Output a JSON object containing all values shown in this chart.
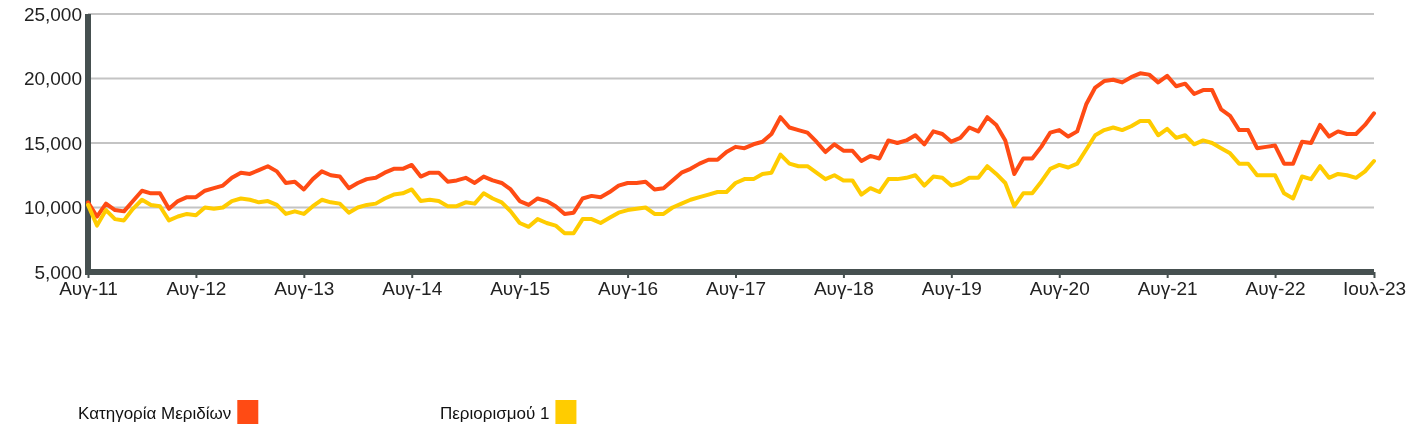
{
  "chart_data": {
    "type": "line",
    "categories": [
      "Αυγ-11",
      null,
      null,
      null,
      null,
      null,
      null,
      null,
      null,
      null,
      null,
      null,
      "Αυγ-12",
      null,
      null,
      null,
      null,
      null,
      null,
      null,
      null,
      null,
      null,
      null,
      "Αυγ-13",
      null,
      null,
      null,
      null,
      null,
      null,
      null,
      null,
      null,
      null,
      null,
      "Αυγ-14",
      null,
      null,
      null,
      null,
      null,
      null,
      null,
      null,
      null,
      null,
      null,
      "Αυγ-15",
      null,
      null,
      null,
      null,
      null,
      null,
      null,
      null,
      null,
      null,
      null,
      "Αυγ-16",
      null,
      null,
      null,
      null,
      null,
      null,
      null,
      null,
      null,
      null,
      null,
      "Αυγ-17",
      null,
      null,
      null,
      null,
      null,
      null,
      null,
      null,
      null,
      null,
      null,
      "Αυγ-18",
      null,
      null,
      null,
      null,
      null,
      null,
      null,
      null,
      null,
      null,
      null,
      "Αυγ-19",
      null,
      null,
      null,
      null,
      null,
      null,
      null,
      null,
      null,
      null,
      null,
      "Αυγ-20",
      null,
      null,
      null,
      null,
      null,
      null,
      null,
      null,
      null,
      null,
      null,
      "Αυγ-21",
      null,
      null,
      null,
      null,
      null,
      null,
      null,
      null,
      null,
      null,
      null,
      "Αυγ-22",
      null,
      null,
      null,
      null,
      null,
      null,
      null,
      null,
      null,
      null,
      "Ιουλ-23"
    ],
    "series": [
      {
        "name": "Κατηγορία Μεριδίων",
        "color": "#ff4b14",
        "values": [
          10400,
          9300,
          10300,
          9800,
          9700,
          10500,
          11300,
          11100,
          11100,
          9900,
          10500,
          10800,
          10800,
          11300,
          11500,
          11700,
          12300,
          12700,
          12600,
          12900,
          13200,
          12800,
          11900,
          12000,
          11400,
          12200,
          12800,
          12500,
          12400,
          11500,
          11900,
          12200,
          12300,
          12700,
          13000,
          13000,
          13300,
          12400,
          12700,
          12700,
          12000,
          12100,
          12300,
          11900,
          12400,
          12100,
          11900,
          11400,
          10500,
          10200,
          10700,
          10500,
          10100,
          9500,
          9600,
          10700,
          10900,
          10800,
          11200,
          11700,
          11900,
          11900,
          12000,
          11400,
          11500,
          12100,
          12700,
          13000,
          13400,
          13700,
          13700,
          14300,
          14700,
          14600,
          14900,
          15100,
          15700,
          17000,
          16200,
          16000,
          15800,
          15100,
          14300,
          14900,
          14400,
          14400,
          13600,
          14000,
          13800,
          15200,
          15000,
          15200,
          15600,
          14900,
          15900,
          15700,
          15100,
          15400,
          16200,
          15900,
          17000,
          16400,
          15200,
          12600,
          13800,
          13800,
          14700,
          15800,
          16000,
          15500,
          15900,
          18000,
          19300,
          19800,
          19900,
          19700,
          20100,
          20400,
          20300,
          19700,
          20200,
          19400,
          19600,
          18800,
          19100,
          19100,
          17600,
          17100,
          16000,
          16000,
          14600,
          14700,
          14800,
          13400,
          13400,
          15100,
          15000,
          16400,
          15500,
          15900,
          15700,
          15700,
          16400,
          17300
        ]
      },
      {
        "name": "Περιορισμού 1",
        "color": "#ffcc00",
        "values": [
          10200,
          8600,
          9800,
          9100,
          9000,
          9900,
          10600,
          10200,
          10100,
          9000,
          9300,
          9500,
          9400,
          10000,
          9900,
          10000,
          10500,
          10700,
          10600,
          10400,
          10500,
          10200,
          9500,
          9700,
          9500,
          10100,
          10600,
          10400,
          10300,
          9600,
          10000,
          10200,
          10300,
          10700,
          11000,
          11100,
          11400,
          10500,
          10600,
          10500,
          10100,
          10100,
          10400,
          10300,
          11100,
          10700,
          10400,
          9700,
          8800,
          8500,
          9100,
          8800,
          8600,
          8000,
          8000,
          9100,
          9100,
          8800,
          9200,
          9600,
          9800,
          9900,
          10000,
          9500,
          9500,
          10000,
          10300,
          10600,
          10800,
          11000,
          11200,
          11200,
          11900,
          12200,
          12200,
          12600,
          12700,
          14100,
          13400,
          13200,
          13200,
          12700,
          12200,
          12500,
          12100,
          12100,
          11000,
          11500,
          11200,
          12200,
          12200,
          12300,
          12500,
          11700,
          12400,
          12300,
          11700,
          11900,
          12300,
          12300,
          13200,
          12600,
          11900,
          10100,
          11100,
          11100,
          12000,
          13000,
          13300,
          13100,
          13400,
          14500,
          15600,
          16000,
          16200,
          16000,
          16300,
          16700,
          16700,
          15600,
          16100,
          15400,
          15600,
          14900,
          15200,
          15000,
          14600,
          14200,
          13400,
          13400,
          12500,
          12500,
          12500,
          11100,
          10700,
          12400,
          12200,
          13200,
          12300,
          12600,
          12500,
          12300,
          12800,
          13600
        ]
      }
    ],
    "ylim": [
      5000,
      25000
    ],
    "yticks": [
      {
        "value": 5000,
        "label": "5,000"
      },
      {
        "value": 10000,
        "label": "10,000"
      },
      {
        "value": 15000,
        "label": "15,000"
      },
      {
        "value": 20000,
        "label": "20,000"
      },
      {
        "value": 25000,
        "label": "25,000"
      }
    ],
    "grid": "y",
    "legend": "bottom",
    "marker": "none",
    "line_style": "solid"
  }
}
